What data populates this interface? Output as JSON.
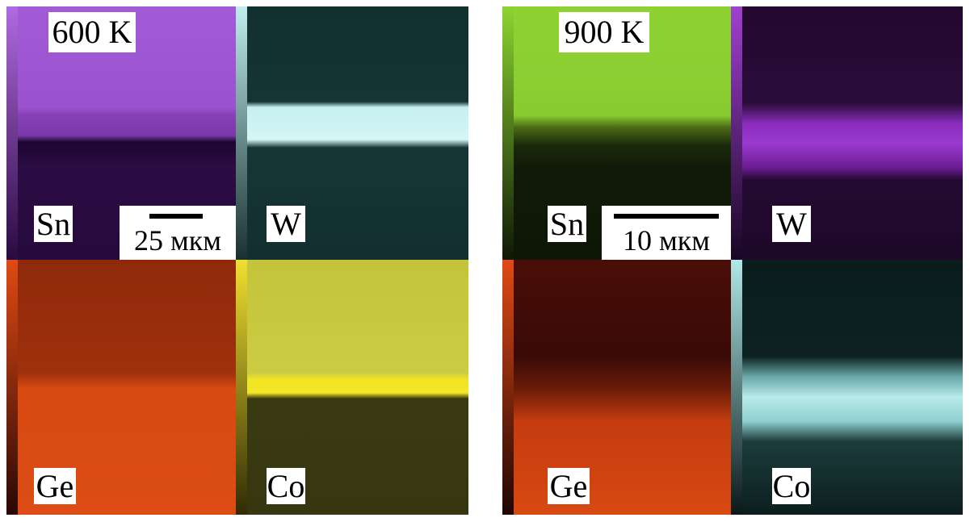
{
  "panels": [
    {
      "temperature": "600 K",
      "scale_bar": "25 мкм",
      "maps": [
        {
          "element": "Sn"
        },
        {
          "element": "W"
        },
        {
          "element": "Ge"
        },
        {
          "element": "Co"
        }
      ]
    },
    {
      "temperature": "900 K",
      "scale_bar": "10 мкм",
      "maps": [
        {
          "element": "Sn"
        },
        {
          "element": "W"
        },
        {
          "element": "Ge"
        },
        {
          "element": "Co"
        }
      ]
    }
  ]
}
